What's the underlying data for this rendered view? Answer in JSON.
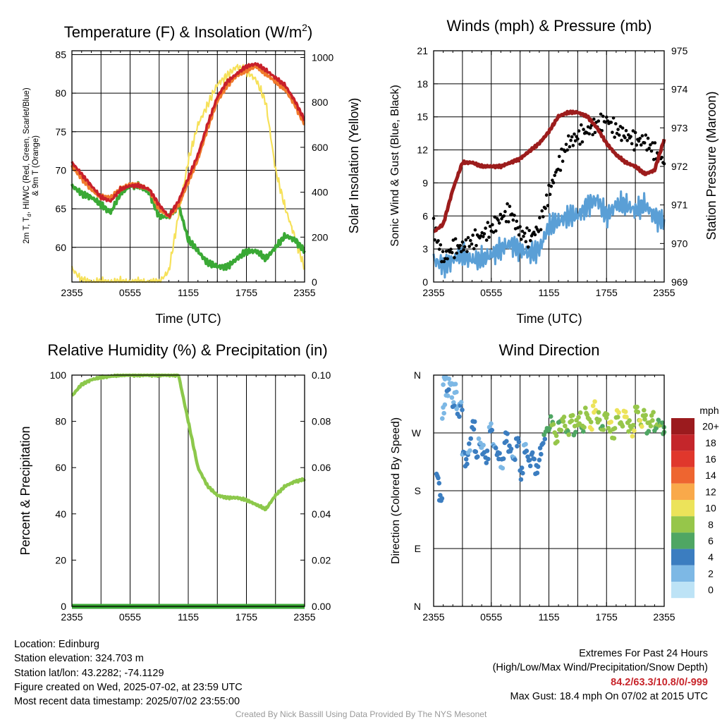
{
  "time_ticks": [
    "2355",
    "0555",
    "1155",
    "1755",
    "2355"
  ],
  "colors": {
    "temp_2m": "#c8202a",
    "dewpoint": "#3aa935",
    "heat_index": "#e8382b",
    "temp_9m": "#f07a2c",
    "solar": "#f6e15a",
    "wind": "#5a9fd6",
    "gust": "#000000",
    "pressure": "#9c1c1c",
    "rh": "#8cc84b",
    "precip": "#3aa935"
  },
  "panels": {
    "temperature": {
      "title": "Temperature (F) & Insolation (W/m",
      "title_sup": "2",
      "title_close": ")",
      "ylabel_left_line1": "2m T, T",
      "ylabel_left_sub": "d",
      "ylabel_left_line1b": ", HI/WC (Red, Green, Scarlet/Blue)",
      "ylabel_left_line2": "& 9m T (Orange)",
      "ylabel_right": "Solar Insolation (Yellow)",
      "xlabel": "Time (UTC)"
    },
    "winds": {
      "title": "Winds (mph) & Pressure (mb)",
      "ylabel_left": "Sonic Wind & Gust (Blue, Black)",
      "ylabel_right": "Station Pressure (Maroon)",
      "xlabel": "Time (UTC)"
    },
    "humidity": {
      "title": "Relative Humidity (%) & Precipitation (in)",
      "ylabel_left": "Percent & Precipitation"
    },
    "direction": {
      "title": "Wind Direction",
      "ylabel_left": "Direction (Colored By Speed)",
      "colorbar_title": "mph",
      "colorbar_labels": [
        "20+",
        "18",
        "16",
        "14",
        "12",
        "10",
        "8",
        "6",
        "4",
        "2",
        "0"
      ],
      "colorbar_colors": [
        "#9b1b1e",
        "#c4262b",
        "#e0372c",
        "#ee6530",
        "#f9a94a",
        "#ece35a",
        "#96c64a",
        "#4fa663",
        "#3b7dc0",
        "#7db8e5",
        "#bde3f6"
      ]
    }
  },
  "chart_data": [
    {
      "type": "line",
      "title": "Temperature (F) & Insolation (W/m2)",
      "xlabel": "Time (UTC)",
      "ylabel": "2m T, Td, HI/WC (Red, Green, Scarlet/Blue) & 9m T (Orange)",
      "y2label": "Solar Insolation (Yellow)",
      "x_hours": [
        0,
        1,
        2,
        3,
        4,
        5,
        6,
        7,
        8,
        9,
        10,
        11,
        12,
        13,
        14,
        15,
        16,
        17,
        18,
        19,
        20,
        21,
        22,
        23,
        24
      ],
      "ylim": [
        55.5,
        85.5
      ],
      "y2lim": [
        0,
        1030
      ],
      "yticks": [
        60,
        65,
        70,
        75,
        80,
        85
      ],
      "y2ticks": [
        0,
        200,
        400,
        600,
        800,
        1000
      ],
      "series": [
        {
          "name": "2m T",
          "axis": "left",
          "values": [
            71,
            69.5,
            68,
            66.5,
            66,
            67.5,
            68,
            68,
            67.5,
            65.5,
            64,
            66,
            69,
            72,
            76,
            79.5,
            81.5,
            82.5,
            83.5,
            83.8,
            83,
            82,
            81,
            79,
            76.5
          ]
        },
        {
          "name": "9m T",
          "axis": "left",
          "values": [
            70.5,
            69,
            67.5,
            66.5,
            66.5,
            67.5,
            68.2,
            68,
            67.5,
            65,
            64,
            65.5,
            68.5,
            71.5,
            75.5,
            79,
            81,
            82.3,
            83,
            83.5,
            82.5,
            81.5,
            80.5,
            78.5,
            76
          ]
        },
        {
          "name": "Td",
          "axis": "left",
          "values": [
            68,
            67,
            66.5,
            65.5,
            64.5,
            67,
            68,
            68,
            67,
            64,
            64,
            65.5,
            61,
            59.5,
            58,
            57.5,
            57.5,
            58.5,
            59.5,
            59.5,
            58.5,
            60,
            61.5,
            61,
            59.5
          ]
        },
        {
          "name": "Solar",
          "axis": "right",
          "values": [
            60,
            10,
            0,
            0,
            0,
            0,
            0,
            0,
            0,
            0,
            50,
            300,
            540,
            700,
            790,
            880,
            920,
            960,
            940,
            900,
            800,
            500,
            330,
            200,
            60
          ]
        }
      ]
    },
    {
      "type": "line",
      "title": "Winds (mph) & Pressure (mb)",
      "xlabel": "Time (UTC)",
      "ylabel": "Sonic Wind & Gust (Blue, Black)",
      "y2label": "Station Pressure (Maroon)",
      "x_hours": [
        0,
        1,
        2,
        3,
        4,
        5,
        6,
        7,
        8,
        9,
        10,
        11,
        12,
        13,
        14,
        15,
        16,
        17,
        18,
        19,
        20,
        21,
        22,
        23,
        24
      ],
      "ylim": [
        0,
        21
      ],
      "y2lim": [
        969,
        975
      ],
      "yticks": [
        0,
        3,
        6,
        9,
        12,
        15,
        18,
        21
      ],
      "y2ticks": [
        969,
        970,
        971,
        972,
        973,
        974,
        975
      ],
      "series": [
        {
          "name": "Wind",
          "axis": "left",
          "values": [
            2,
            1.5,
            2,
            2.5,
            2,
            2,
            2.5,
            3,
            3.5,
            3,
            2.5,
            3,
            5,
            5.5,
            6,
            6,
            7,
            7.5,
            6,
            7,
            7,
            6.5,
            7,
            6,
            5.5
          ]
        },
        {
          "name": "Gust",
          "axis": "left",
          "values": [
            5,
            2,
            3,
            3,
            3.5,
            4,
            4.5,
            5.5,
            6,
            4,
            3.5,
            4.5,
            7.5,
            10,
            12,
            12.5,
            13,
            13.5,
            14,
            13,
            12.5,
            12,
            12,
            11,
            10
          ]
        },
        {
          "name": "Pressure",
          "axis": "right",
          "values": [
            970.3,
            970.5,
            971.4,
            972.1,
            972.1,
            972.0,
            972.0,
            972.0,
            972.1,
            972.2,
            972.4,
            972.6,
            972.9,
            973.3,
            973.4,
            973.4,
            973.3,
            973.0,
            972.6,
            972.3,
            972.1,
            972.0,
            971.8,
            971.9,
            972.7
          ]
        }
      ]
    },
    {
      "type": "line",
      "title": "Relative Humidity (%) & Precipitation (in)",
      "ylabel": "Percent & Precipitation",
      "x_hours": [
        0,
        1,
        2,
        3,
        4,
        5,
        6,
        7,
        8,
        9,
        10,
        11,
        12,
        13,
        14,
        15,
        16,
        17,
        18,
        19,
        20,
        21,
        22,
        23,
        24
      ],
      "ylim": [
        0,
        100
      ],
      "y2lim": [
        0,
        0.1
      ],
      "yticks": [
        0,
        20,
        40,
        60,
        80,
        100
      ],
      "y2ticks": [
        0.0,
        0.02,
        0.04,
        0.06,
        0.08,
        0.1
      ],
      "series": [
        {
          "name": "RH",
          "axis": "left",
          "values": [
            91,
            96,
            98,
            99,
            99.5,
            100,
            100,
            100,
            100,
            100,
            100,
            100,
            80,
            60,
            52,
            48,
            47,
            47,
            46,
            44,
            42,
            48,
            52,
            54,
            55
          ]
        },
        {
          "name": "Precip",
          "axis": "right",
          "values": [
            0,
            0,
            0,
            0,
            0,
            0,
            0,
            0,
            0,
            0,
            0,
            0,
            0,
            0,
            0,
            0,
            0,
            0,
            0,
            0,
            0,
            0,
            0,
            0,
            0
          ]
        }
      ]
    },
    {
      "type": "scatter",
      "title": "Wind Direction",
      "ylabel": "Direction (Colored By Speed)",
      "yticks": [
        "N",
        "E",
        "S",
        "W",
        "N"
      ],
      "ytick_degrees": [
        0,
        90,
        180,
        270,
        360
      ],
      "ylim": [
        0,
        360
      ],
      "colorbar": "mph",
      "points": [
        {
          "x": 0.3,
          "y": 200,
          "s": 3
        },
        {
          "x": 0.6,
          "y": 170,
          "s": 3
        },
        {
          "x": 0.9,
          "y": 305,
          "s": 1
        },
        {
          "x": 1.0,
          "y": 355,
          "s": 1
        },
        {
          "x": 1.3,
          "y": 330,
          "s": 2
        },
        {
          "x": 1.6,
          "y": 350,
          "s": 1
        },
        {
          "x": 1.9,
          "y": 320,
          "s": 2
        },
        {
          "x": 2.1,
          "y": 340,
          "s": 1
        },
        {
          "x": 2.4,
          "y": 300,
          "s": 2
        },
        {
          "x": 2.7,
          "y": 310,
          "s": 2
        },
        {
          "x": 3.0,
          "y": 240,
          "s": 2
        },
        {
          "x": 3.3,
          "y": 230,
          "s": 3
        },
        {
          "x": 3.6,
          "y": 250,
          "s": 2
        },
        {
          "x": 4.0,
          "y": 280,
          "s": 3
        },
        {
          "x": 4.3,
          "y": 235,
          "s": 3
        },
        {
          "x": 4.7,
          "y": 255,
          "s": 2
        },
        {
          "x": 5.0,
          "y": 245,
          "s": 2
        },
        {
          "x": 5.4,
          "y": 230,
          "s": 3
        },
        {
          "x": 5.8,
          "y": 275,
          "s": 2
        },
        {
          "x": 6.2,
          "y": 250,
          "s": 2
        },
        {
          "x": 6.6,
          "y": 240,
          "s": 3
        },
        {
          "x": 7.0,
          "y": 225,
          "s": 2
        },
        {
          "x": 7.4,
          "y": 260,
          "s": 3
        },
        {
          "x": 7.8,
          "y": 240,
          "s": 3
        },
        {
          "x": 8.2,
          "y": 230,
          "s": 2
        },
        {
          "x": 8.6,
          "y": 260,
          "s": 3
        },
        {
          "x": 9.0,
          "y": 210,
          "s": 3
        },
        {
          "x": 9.4,
          "y": 245,
          "s": 2
        },
        {
          "x": 9.8,
          "y": 225,
          "s": 3
        },
        {
          "x": 10.2,
          "y": 235,
          "s": 3
        },
        {
          "x": 10.6,
          "y": 215,
          "s": 3
        },
        {
          "x": 11.0,
          "y": 240,
          "s": 3
        },
        {
          "x": 11.4,
          "y": 260,
          "s": 4
        },
        {
          "x": 11.8,
          "y": 275,
          "s": 5
        },
        {
          "x": 12.2,
          "y": 290,
          "s": 6
        },
        {
          "x": 12.6,
          "y": 265,
          "s": 7
        },
        {
          "x": 13.0,
          "y": 280,
          "s": 6
        },
        {
          "x": 13.4,
          "y": 285,
          "s": 7
        },
        {
          "x": 13.8,
          "y": 270,
          "s": 6
        },
        {
          "x": 14.2,
          "y": 295,
          "s": 7
        },
        {
          "x": 14.6,
          "y": 280,
          "s": 6
        },
        {
          "x": 15.0,
          "y": 290,
          "s": 7
        },
        {
          "x": 15.4,
          "y": 275,
          "s": 6
        },
        {
          "x": 15.8,
          "y": 300,
          "s": 7
        },
        {
          "x": 16.2,
          "y": 285,
          "s": 8
        },
        {
          "x": 16.6,
          "y": 310,
          "s": 9
        },
        {
          "x": 17.0,
          "y": 290,
          "s": 7
        },
        {
          "x": 17.4,
          "y": 275,
          "s": 6
        },
        {
          "x": 17.8,
          "y": 300,
          "s": 7
        },
        {
          "x": 18.2,
          "y": 285,
          "s": 8
        },
        {
          "x": 18.6,
          "y": 270,
          "s": 7
        },
        {
          "x": 19.0,
          "y": 295,
          "s": 8
        },
        {
          "x": 19.4,
          "y": 280,
          "s": 7
        },
        {
          "x": 19.8,
          "y": 300,
          "s": 9
        },
        {
          "x": 20.2,
          "y": 285,
          "s": 7
        },
        {
          "x": 20.6,
          "y": 275,
          "s": 8
        },
        {
          "x": 21.0,
          "y": 305,
          "s": 7
        },
        {
          "x": 21.4,
          "y": 285,
          "s": 8
        },
        {
          "x": 21.8,
          "y": 300,
          "s": 7
        },
        {
          "x": 22.2,
          "y": 280,
          "s": 6
        },
        {
          "x": 22.6,
          "y": 290,
          "s": 7
        },
        {
          "x": 23.0,
          "y": 275,
          "s": 6
        },
        {
          "x": 23.4,
          "y": 285,
          "s": 6
        },
        {
          "x": 23.8,
          "y": 280,
          "s": 5
        }
      ]
    }
  ],
  "info": {
    "location": "Location: Edinburg",
    "elevation": "Station elevation: 324.703 m",
    "latlon": "Station lat/lon: 43.2282; -74.1129",
    "created": "Figure created on Wed, 2025-07-02, at 23:59 UTC",
    "recent": "Most recent data timestamp: 2025/07/02 23:55:00",
    "extremes_title": "Extremes For Past 24 Hours",
    "extremes_subtitle": "(High/Low/Max Wind/Precipitation/Snow Depth)",
    "extremes_values": "84.2/63.3/10.8/0/-999",
    "max_gust": "Max Gust: 18.4 mph On 07/02 at 2015 UTC",
    "credit": "Created By Nick Bassill Using Data Provided By The NYS Mesonet"
  }
}
